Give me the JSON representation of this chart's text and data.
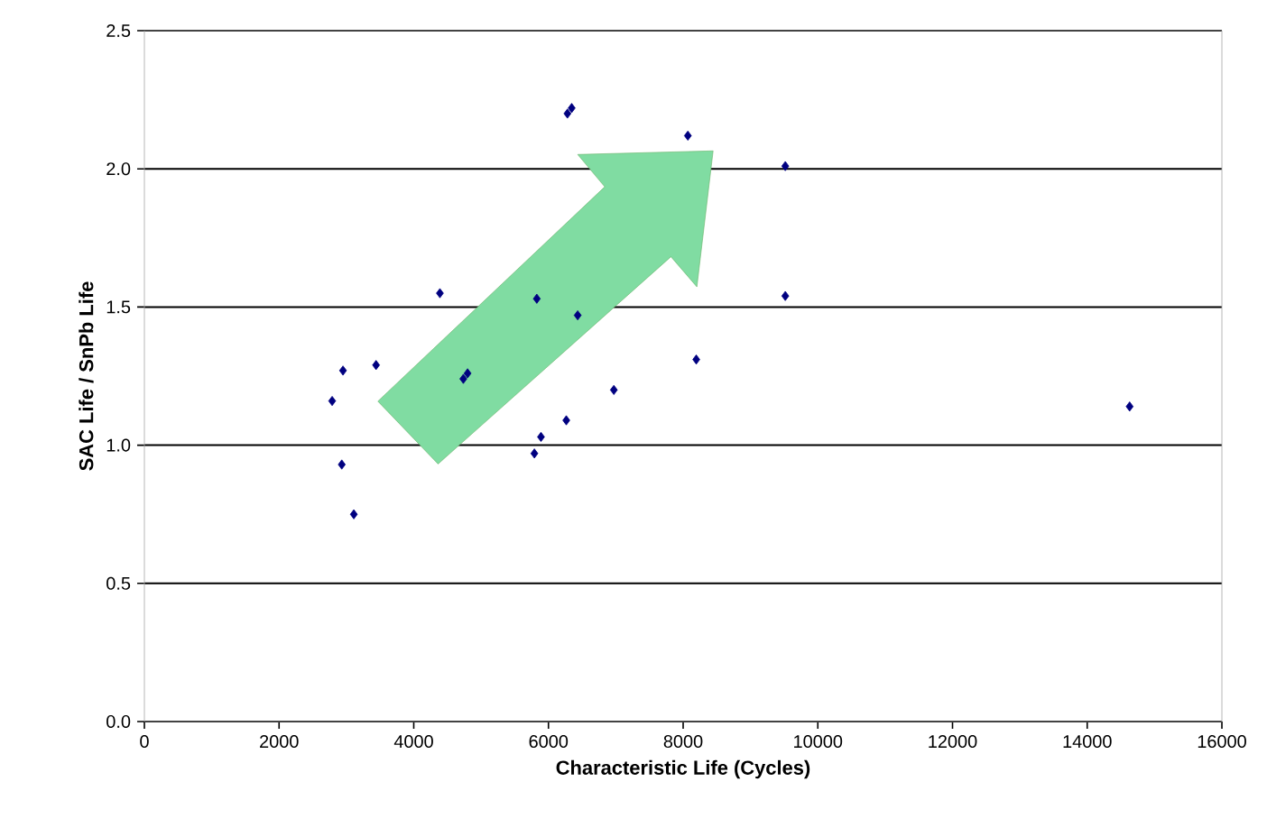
{
  "chart_data": {
    "type": "scatter",
    "xlabel": "Characteristic Life (Cycles)",
    "ylabel": "SAC Life / SnPb Life",
    "x": [
      2788,
      2949,
      2931,
      3110,
      3440,
      4388,
      4736,
      4799,
      5827,
      5791,
      5889,
      6265,
      6434,
      6282,
      6345,
      6971,
      8070,
      8195,
      9517,
      9517,
      14630
    ],
    "series": [
      {
        "color": "#000080",
        "values": [
          1.16,
          1.27,
          0.93,
          0.75,
          1.29,
          1.55,
          1.24,
          1.26,
          1.53,
          0.97,
          1.03,
          1.09,
          1.47,
          2.2,
          2.22,
          1.2,
          2.12,
          1.31,
          2.01,
          1.54,
          1.14
        ]
      }
    ],
    "xlim": [
      0,
      16000
    ],
    "xticks": [
      0,
      2000,
      4000,
      6000,
      8000,
      10000,
      12000,
      14000,
      16000
    ],
    "ylim": [
      0,
      2.5
    ],
    "yticks": [
      {
        "value": 0,
        "label": "0.0"
      },
      {
        "value": 0.5,
        "label": "0.5"
      },
      {
        "value": 1,
        "label": "1.0"
      },
      {
        "value": 1.5,
        "label": "1.5"
      },
      {
        "value": 2,
        "label": "2.0"
      },
      {
        "value": 2.5,
        "label": "2.5"
      }
    ],
    "grid": "y",
    "marker": "diamond"
  }
}
